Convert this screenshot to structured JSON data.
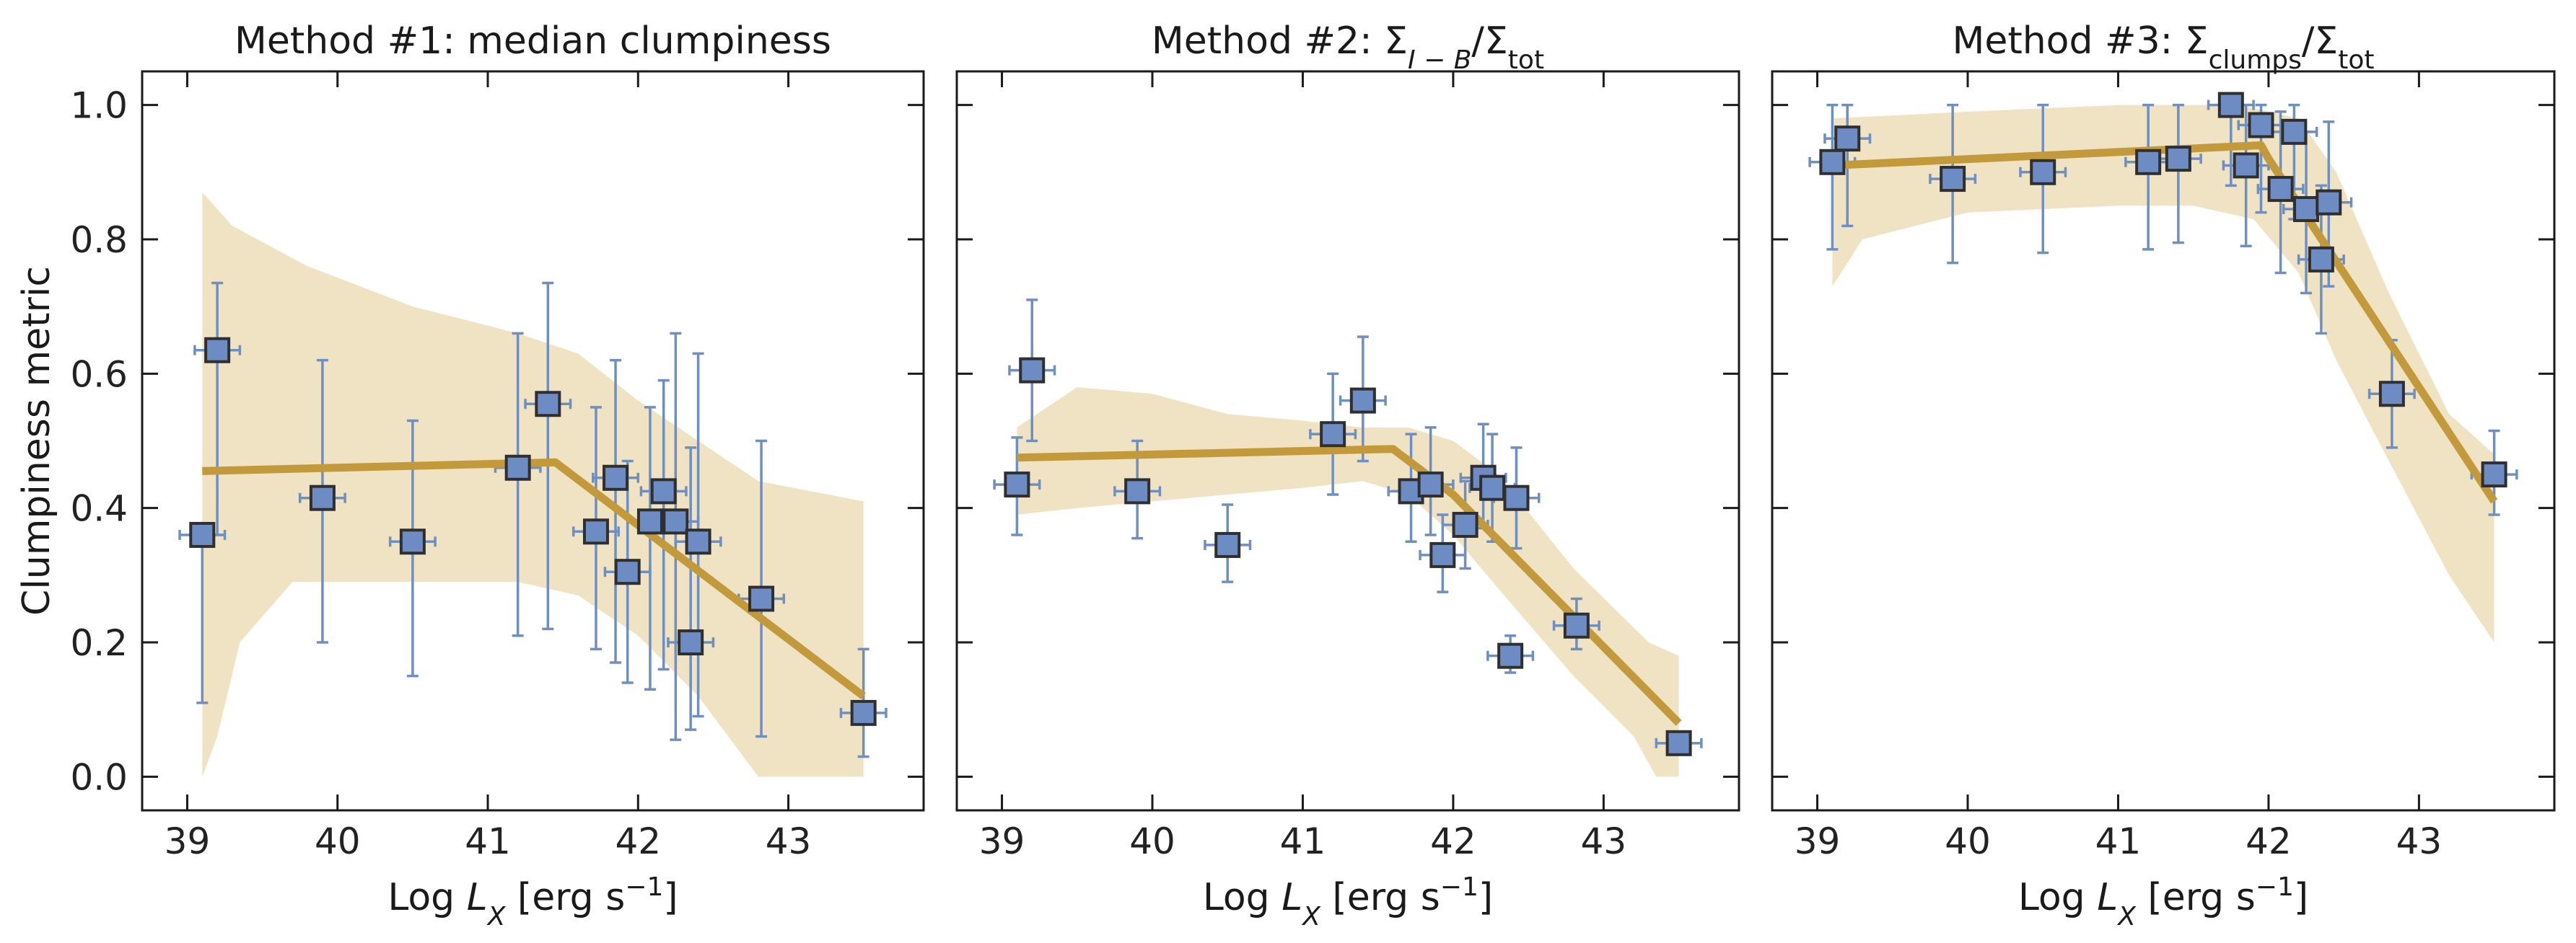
{
  "chart_data": [
    {
      "type": "scatter",
      "title": "Method #1: median clumpiness",
      "title_parts": [
        {
          "text": "Method #1: median clumpiness",
          "shift": "normal",
          "italic": false
        }
      ],
      "xlabel": "Log L_X [erg s^-1]",
      "ylabel": "Clumpiness metric",
      "xlim": [
        38.7,
        43.9
      ],
      "ylim": [
        -0.05,
        1.05
      ],
      "xticks": [
        39,
        40,
        41,
        42,
        43
      ],
      "xtick_labels": [
        "39",
        "40",
        "41",
        "42",
        "43"
      ],
      "yticks": [
        0.0,
        0.2,
        0.4,
        0.6,
        0.8,
        1.0
      ],
      "ytick_labels": [
        "0.0",
        "0.2",
        "0.4",
        "0.6",
        "0.8",
        "1.0"
      ],
      "show_yticklabels": true,
      "points": [
        {
          "x": 39.1,
          "y": 0.36,
          "ylo": 0.11,
          "yhi": 0.36,
          "xerr": 0.15
        },
        {
          "x": 39.2,
          "y": 0.635,
          "ylo": 0.36,
          "yhi": 0.735,
          "xerr": 0.15
        },
        {
          "x": 39.9,
          "y": 0.415,
          "ylo": 0.2,
          "yhi": 0.62,
          "xerr": 0.15
        },
        {
          "x": 40.5,
          "y": 0.35,
          "ylo": 0.15,
          "yhi": 0.53,
          "xerr": 0.15
        },
        {
          "x": 41.2,
          "y": 0.46,
          "ylo": 0.21,
          "yhi": 0.66,
          "xerr": 0.15
        },
        {
          "x": 41.4,
          "y": 0.555,
          "ylo": 0.22,
          "yhi": 0.735,
          "xerr": 0.15
        },
        {
          "x": 41.72,
          "y": 0.365,
          "ylo": 0.19,
          "yhi": 0.55,
          "xerr": 0.15
        },
        {
          "x": 41.85,
          "y": 0.445,
          "ylo": 0.17,
          "yhi": 0.62,
          "xerr": 0.15
        },
        {
          "x": 41.93,
          "y": 0.305,
          "ylo": 0.14,
          "yhi": 0.47,
          "xerr": 0.15
        },
        {
          "x": 42.08,
          "y": 0.38,
          "ylo": 0.13,
          "yhi": 0.55,
          "xerr": 0.15
        },
        {
          "x": 42.17,
          "y": 0.425,
          "ylo": 0.16,
          "yhi": 0.59,
          "xerr": 0.15
        },
        {
          "x": 42.25,
          "y": 0.38,
          "ylo": 0.055,
          "yhi": 0.66,
          "xerr": 0.15
        },
        {
          "x": 42.35,
          "y": 0.2,
          "ylo": 0.07,
          "yhi": 0.49,
          "xerr": 0.15
        },
        {
          "x": 42.4,
          "y": 0.35,
          "ylo": 0.09,
          "yhi": 0.63,
          "xerr": 0.15
        },
        {
          "x": 42.82,
          "y": 0.265,
          "ylo": 0.06,
          "yhi": 0.5,
          "xerr": 0.15
        },
        {
          "x": 43.5,
          "y": 0.095,
          "ylo": 0.03,
          "yhi": 0.19,
          "xerr": 0.15
        }
      ],
      "fit_line": {
        "x": [
          39.1,
          41.45,
          43.5
        ],
        "y": [
          0.455,
          0.468,
          0.12
        ]
      },
      "band_upper": {
        "x": [
          39.1,
          39.3,
          39.8,
          40.5,
          41.2,
          41.6,
          42.0,
          42.4,
          42.8,
          43.5
        ],
        "y": [
          0.87,
          0.82,
          0.76,
          0.7,
          0.66,
          0.63,
          0.56,
          0.5,
          0.44,
          0.41
        ]
      },
      "band_lower": {
        "x": [
          39.1,
          39.2,
          39.35,
          39.7,
          40.5,
          41.2,
          41.6,
          42.0,
          42.4,
          42.8,
          43.5
        ],
        "y": [
          0.0,
          0.06,
          0.2,
          0.29,
          0.29,
          0.29,
          0.27,
          0.21,
          0.12,
          0.0,
          0.0
        ]
      }
    },
    {
      "type": "scatter",
      "title": "Method #2: Σ_{I−B}/Σ_tot",
      "title_parts": [
        {
          "text": "Method #2: Σ",
          "shift": "normal",
          "italic": false
        },
        {
          "text": "I − B",
          "shift": "sub",
          "italic": true
        },
        {
          "text": "/Σ",
          "shift": "normal",
          "italic": false
        },
        {
          "text": "tot",
          "shift": "sub",
          "italic": false
        }
      ],
      "xlabel": "Log L_X [erg s^-1]",
      "ylabel": "",
      "xlim": [
        38.7,
        43.9
      ],
      "ylim": [
        -0.05,
        1.05
      ],
      "xticks": [
        39,
        40,
        41,
        42,
        43
      ],
      "xtick_labels": [
        "39",
        "40",
        "41",
        "42",
        "43"
      ],
      "yticks": [
        0.0,
        0.2,
        0.4,
        0.6,
        0.8,
        1.0
      ],
      "ytick_labels": [
        "0.0",
        "0.2",
        "0.4",
        "0.6",
        "0.8",
        "1.0"
      ],
      "show_yticklabels": false,
      "points": [
        {
          "x": 39.1,
          "y": 0.435,
          "ylo": 0.36,
          "yhi": 0.505,
          "xerr": 0.15
        },
        {
          "x": 39.2,
          "y": 0.605,
          "ylo": 0.5,
          "yhi": 0.71,
          "xerr": 0.15
        },
        {
          "x": 39.9,
          "y": 0.425,
          "ylo": 0.355,
          "yhi": 0.5,
          "xerr": 0.15
        },
        {
          "x": 40.5,
          "y": 0.345,
          "ylo": 0.29,
          "yhi": 0.405,
          "xerr": 0.15
        },
        {
          "x": 41.2,
          "y": 0.51,
          "ylo": 0.42,
          "yhi": 0.6,
          "xerr": 0.15
        },
        {
          "x": 41.4,
          "y": 0.56,
          "ylo": 0.47,
          "yhi": 0.655,
          "xerr": 0.15
        },
        {
          "x": 41.72,
          "y": 0.425,
          "ylo": 0.35,
          "yhi": 0.51,
          "xerr": 0.15
        },
        {
          "x": 41.85,
          "y": 0.435,
          "ylo": 0.36,
          "yhi": 0.52,
          "xerr": 0.15
        },
        {
          "x": 41.93,
          "y": 0.33,
          "ylo": 0.275,
          "yhi": 0.39,
          "xerr": 0.15
        },
        {
          "x": 42.08,
          "y": 0.375,
          "ylo": 0.31,
          "yhi": 0.44,
          "xerr": 0.15
        },
        {
          "x": 42.2,
          "y": 0.445,
          "ylo": 0.37,
          "yhi": 0.525,
          "xerr": 0.15
        },
        {
          "x": 42.26,
          "y": 0.43,
          "ylo": 0.35,
          "yhi": 0.51,
          "xerr": 0.15
        },
        {
          "x": 42.42,
          "y": 0.415,
          "ylo": 0.34,
          "yhi": 0.49,
          "xerr": 0.15
        },
        {
          "x": 42.38,
          "y": 0.18,
          "ylo": 0.155,
          "yhi": 0.21,
          "xerr": 0.15
        },
        {
          "x": 42.82,
          "y": 0.225,
          "ylo": 0.19,
          "yhi": 0.265,
          "xerr": 0.15
        },
        {
          "x": 43.5,
          "y": 0.05,
          "ylo": 0.04,
          "yhi": 0.06,
          "xerr": 0.15
        }
      ],
      "fit_line": {
        "x": [
          39.1,
          41.6,
          42.0,
          43.5
        ],
        "y": [
          0.475,
          0.488,
          0.42,
          0.08
        ]
      },
      "band_upper": {
        "x": [
          39.1,
          39.5,
          40.0,
          40.5,
          41.0,
          41.4,
          41.7,
          42.0,
          42.3,
          42.8,
          43.3,
          43.5
        ],
        "y": [
          0.52,
          0.58,
          0.57,
          0.54,
          0.53,
          0.52,
          0.52,
          0.5,
          0.45,
          0.31,
          0.2,
          0.18
        ]
      },
      "band_lower": {
        "x": [
          39.1,
          39.5,
          40.0,
          40.5,
          41.0,
          41.4,
          41.7,
          42.0,
          42.3,
          42.8,
          43.2,
          43.35,
          43.5
        ],
        "y": [
          0.39,
          0.4,
          0.41,
          0.42,
          0.43,
          0.44,
          0.42,
          0.36,
          0.28,
          0.15,
          0.06,
          0.0,
          0.0
        ]
      }
    },
    {
      "type": "scatter",
      "title": "Method #3: Σ_clumps/Σ_tot",
      "title_parts": [
        {
          "text": "Method #3: Σ",
          "shift": "normal",
          "italic": false
        },
        {
          "text": "clumps",
          "shift": "sub",
          "italic": false
        },
        {
          "text": "/Σ",
          "shift": "normal",
          "italic": false
        },
        {
          "text": "tot",
          "shift": "sub",
          "italic": false
        }
      ],
      "xlabel": "Log L_X [erg s^-1]",
      "ylabel": "",
      "xlim": [
        38.7,
        43.9
      ],
      "ylim": [
        -0.05,
        1.05
      ],
      "xticks": [
        39,
        40,
        41,
        42,
        43
      ],
      "xtick_labels": [
        "39",
        "40",
        "41",
        "42",
        "43"
      ],
      "yticks": [
        0.0,
        0.2,
        0.4,
        0.6,
        0.8,
        1.0
      ],
      "ytick_labels": [
        "0.0",
        "0.2",
        "0.4",
        "0.6",
        "0.8",
        "1.0"
      ],
      "show_yticklabels": false,
      "points": [
        {
          "x": 39.1,
          "y": 0.915,
          "ylo": 0.785,
          "yhi": 1.0,
          "xerr": 0.15
        },
        {
          "x": 39.2,
          "y": 0.95,
          "ylo": 0.82,
          "yhi": 1.0,
          "xerr": 0.15
        },
        {
          "x": 39.9,
          "y": 0.89,
          "ylo": 0.765,
          "yhi": 1.0,
          "xerr": 0.15
        },
        {
          "x": 40.5,
          "y": 0.9,
          "ylo": 0.78,
          "yhi": 1.0,
          "xerr": 0.15
        },
        {
          "x": 41.2,
          "y": 0.915,
          "ylo": 0.785,
          "yhi": 1.0,
          "xerr": 0.15
        },
        {
          "x": 41.4,
          "y": 0.92,
          "ylo": 0.795,
          "yhi": 1.0,
          "xerr": 0.15
        },
        {
          "x": 41.75,
          "y": 1.0,
          "ylo": 0.88,
          "yhi": 1.0,
          "xerr": 0.15
        },
        {
          "x": 41.85,
          "y": 0.91,
          "ylo": 0.79,
          "yhi": 1.0,
          "xerr": 0.15
        },
        {
          "x": 41.95,
          "y": 0.97,
          "ylo": 0.84,
          "yhi": 1.0,
          "xerr": 0.15
        },
        {
          "x": 42.08,
          "y": 0.875,
          "ylo": 0.75,
          "yhi": 0.99,
          "xerr": 0.15
        },
        {
          "x": 42.17,
          "y": 0.96,
          "ylo": 0.83,
          "yhi": 1.0,
          "xerr": 0.15
        },
        {
          "x": 42.25,
          "y": 0.845,
          "ylo": 0.72,
          "yhi": 0.96,
          "xerr": 0.15
        },
        {
          "x": 42.35,
          "y": 0.77,
          "ylo": 0.66,
          "yhi": 0.88,
          "xerr": 0.15
        },
        {
          "x": 42.4,
          "y": 0.855,
          "ylo": 0.73,
          "yhi": 0.975,
          "xerr": 0.15
        },
        {
          "x": 42.82,
          "y": 0.57,
          "ylo": 0.49,
          "yhi": 0.65,
          "xerr": 0.15
        },
        {
          "x": 43.5,
          "y": 0.45,
          "ylo": 0.39,
          "yhi": 0.515,
          "xerr": 0.15
        }
      ],
      "fit_line": {
        "x": [
          39.1,
          41.95,
          42.0,
          43.5
        ],
        "y": [
          0.91,
          0.94,
          0.92,
          0.41
        ]
      },
      "band_upper": {
        "x": [
          39.1,
          40.0,
          41.0,
          41.8,
          42.2,
          42.45,
          42.8,
          43.2,
          43.5
        ],
        "y": [
          0.98,
          0.99,
          1.0,
          1.0,
          0.98,
          0.9,
          0.72,
          0.54,
          0.48
        ]
      },
      "band_lower": {
        "x": [
          39.1,
          39.3,
          40.0,
          41.0,
          41.5,
          41.9,
          42.2,
          42.45,
          42.8,
          43.2,
          43.5
        ],
        "y": [
          0.73,
          0.8,
          0.84,
          0.85,
          0.85,
          0.83,
          0.75,
          0.62,
          0.47,
          0.3,
          0.2
        ]
      }
    }
  ],
  "colors": {
    "marker_face": "#6e8cc4",
    "marker_edge": "#2f2f2f",
    "errorbar": "#6f8fc0",
    "fit_line": "#c39a3b",
    "band": "#efe3c4",
    "axes": "#1a1a1a"
  }
}
